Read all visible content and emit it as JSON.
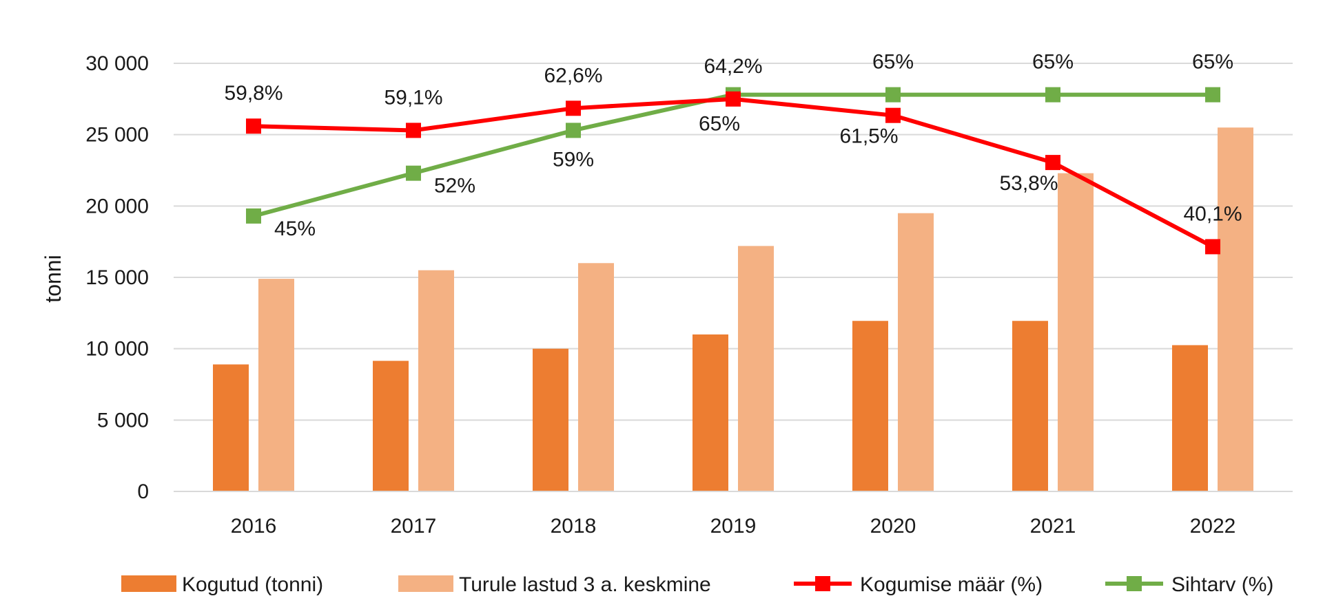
{
  "chart_data": {
    "type": "bar",
    "title": "",
    "xlabel": "",
    "ylabel": "tonni",
    "ylim": [
      0,
      30000
    ],
    "y_ticks": [
      "0",
      "5 000",
      "10 000",
      "15 000",
      "20 000",
      "25 000",
      "30 000"
    ],
    "y_tick_values": [
      0,
      5000,
      10000,
      15000,
      20000,
      25000,
      30000
    ],
    "grid": true,
    "legend_position": "bottom",
    "categories": [
      "2016",
      "2017",
      "2018",
      "2019",
      "2020",
      "2021",
      "2022"
    ],
    "bar_series": [
      {
        "name": "Kogutud (tonni)",
        "color": "#ED7D31",
        "values": [
          8900,
          9150,
          10000,
          11000,
          11950,
          11950,
          10250
        ]
      },
      {
        "name": "Turule lastud 3 a. keskmine",
        "color": "#F4B183",
        "values": [
          14900,
          15500,
          16000,
          17200,
          19500,
          22300,
          25500
        ]
      }
    ],
    "line_series": [
      {
        "name": "Kogumise määr (%)",
        "color": "#FF0000",
        "values": [
          25600,
          25300,
          26850,
          27500,
          26350,
          23050,
          17150
        ],
        "labels": [
          "59,8%",
          "59,1%",
          "62,6%",
          "64,2%",
          "61,5%",
          "53,8%",
          "40,1%"
        ],
        "label_pos": [
          "above",
          "above",
          "above",
          "above",
          "below",
          "below",
          "above"
        ]
      },
      {
        "name": "Sihtarv (%)",
        "color": "#70AD47",
        "values": [
          19300,
          22300,
          25300,
          27800,
          27800,
          27800,
          27800
        ],
        "labels": [
          "45%",
          "52%",
          "59%",
          "65%",
          "65%",
          "65%",
          "65%"
        ],
        "label_pos": [
          "below",
          "below",
          "below",
          "below",
          "above",
          "above",
          "above"
        ]
      }
    ]
  }
}
